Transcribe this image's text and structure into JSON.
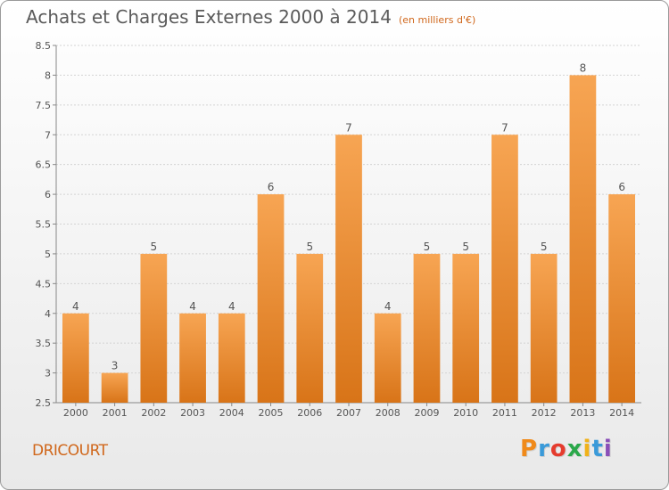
{
  "header": {
    "title": "Achats et Charges Externes 2000 à 2014",
    "unit": "(en milliers d'€)"
  },
  "footer": {
    "city": "DRICOURT",
    "logo": "Proxiti"
  },
  "colors": {
    "bar_top": "#f7a553",
    "bar_bottom": "#d87418",
    "text": "#555555",
    "accent": "#d0671b",
    "logo_letters": [
      "#f08a1a",
      "#3a9ad9",
      "#e53c2e",
      "#2aa84a",
      "#f0b21a",
      "#3a9ad9",
      "#8a4fb8"
    ]
  },
  "chart_data": {
    "type": "bar",
    "title": "Achats et Charges Externes 2000 à 2014",
    "subtitle": "(en milliers d'€)",
    "categories": [
      "2000",
      "2001",
      "2002",
      "2003",
      "2004",
      "2005",
      "2006",
      "2007",
      "2008",
      "2009",
      "2010",
      "2011",
      "2012",
      "2013",
      "2014"
    ],
    "values": [
      4,
      3,
      5,
      4,
      4,
      6,
      5,
      7,
      4,
      5,
      5,
      7,
      5,
      8,
      6
    ],
    "data_labels": [
      "4",
      "3",
      "5",
      "4",
      "4",
      "6",
      "5",
      "7",
      "4",
      "5",
      "5",
      "7",
      "5",
      "8",
      "6"
    ],
    "ylim": [
      2.5,
      8.5
    ],
    "yticks": [
      "2.5",
      "3",
      "3.5",
      "4",
      "4.5",
      "5",
      "5.5",
      "6",
      "6.5",
      "7",
      "7.5",
      "8",
      "8.5"
    ],
    "grid": true
  }
}
